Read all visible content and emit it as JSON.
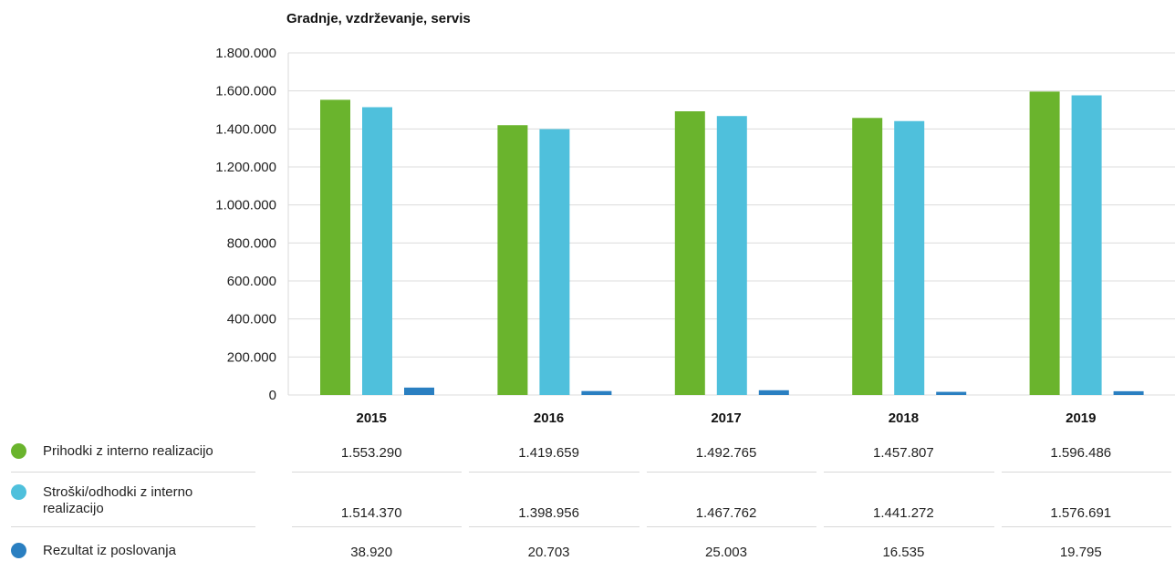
{
  "chart_data": {
    "type": "bar",
    "title": "Gradnje, vzdrževanje, servis",
    "categories": [
      "2015",
      "2016",
      "2017",
      "2018",
      "2019"
    ],
    "ylim": [
      0,
      1800000
    ],
    "yticks": [
      "0",
      "200.000",
      "400.000",
      "600.000",
      "800.000",
      "1.000.000",
      "1.200.000",
      "1.400.000",
      "1.600.000",
      "1.800.000"
    ],
    "grid": true,
    "legend": "bottom-left table",
    "series": [
      {
        "name": "Prihodki z interno realizacijo",
        "color": "#6ab42d",
        "values": [
          1553290,
          1419659,
          1492765,
          1457807,
          1596486
        ],
        "labels": [
          "1.553.290",
          "1.419.659",
          "1.492.765",
          "1.457.807",
          "1.596.486"
        ]
      },
      {
        "name": "Stroški/odhodki z interno realizacijo",
        "color": "#4fc0dc",
        "values": [
          1514370,
          1398956,
          1467762,
          1441272,
          1576691
        ],
        "labels": [
          "1.514.370",
          "1.398.956",
          "1.467.762",
          "1.441.272",
          "1.576.691"
        ]
      },
      {
        "name": "Rezultat iz poslovanja",
        "color": "#2a7fc1",
        "values": [
          38920,
          20703,
          25003,
          16535,
          19795
        ],
        "labels": [
          "38.920",
          "20.703",
          "25.003",
          "16.535",
          "19.795"
        ]
      }
    ]
  }
}
